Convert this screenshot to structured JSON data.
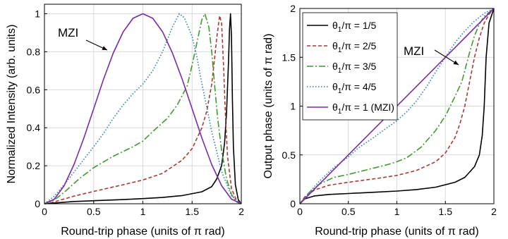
{
  "chart_data": [
    {
      "type": "line",
      "xlabel": "Round-trip phase (units of π rad)",
      "ylabel": "Normalized Intensity (arb. units)",
      "xlim": [
        0,
        2
      ],
      "ylim": [
        0,
        1.05
      ],
      "xticks": [
        "0",
        "0.5",
        "1",
        "1.5",
        "2"
      ],
      "yticks": [
        "0",
        "0.2",
        "0.4",
        "0.6",
        "0.8",
        "1"
      ],
      "grid": true,
      "annotation": "MZI",
      "series": [
        {
          "name": "θ1/π = 1/5",
          "color": "#000000",
          "dash": "solid",
          "x": [
            0,
            0.1,
            0.3,
            0.5,
            0.8,
            1.0,
            1.2,
            1.4,
            1.6,
            1.7,
            1.75,
            1.8,
            1.83,
            1.85,
            1.87,
            1.88,
            1.89,
            1.9,
            1.91,
            1.92,
            1.94,
            1.97,
            2.0
          ],
          "y": [
            0,
            0.004,
            0.012,
            0.016,
            0.022,
            0.027,
            0.033,
            0.043,
            0.063,
            0.09,
            0.13,
            0.2,
            0.32,
            0.48,
            0.75,
            0.92,
            1.0,
            0.88,
            0.55,
            0.3,
            0.1,
            0.02,
            0
          ]
        },
        {
          "name": "θ1/π = 2/5",
          "color": "#a83c32",
          "dash": "5,3",
          "x": [
            0,
            0.1,
            0.3,
            0.5,
            0.8,
            1.0,
            1.2,
            1.4,
            1.5,
            1.6,
            1.65,
            1.7,
            1.73,
            1.75,
            1.78,
            1.8,
            1.82,
            1.84,
            1.86,
            1.9,
            1.95,
            2.0
          ],
          "y": [
            0,
            0.01,
            0.04,
            0.065,
            0.1,
            0.125,
            0.16,
            0.23,
            0.29,
            0.4,
            0.49,
            0.63,
            0.77,
            0.87,
            0.99,
            0.95,
            0.72,
            0.45,
            0.25,
            0.08,
            0.02,
            0
          ]
        },
        {
          "name": "θ1/π = 3/5",
          "color": "#3f9a2e",
          "dash": "9,3,2,3",
          "x": [
            0,
            0.1,
            0.2,
            0.35,
            0.5,
            0.7,
            0.9,
            1.0,
            1.1,
            1.25,
            1.35,
            1.45,
            1.5,
            1.55,
            1.6,
            1.63,
            1.67,
            1.7,
            1.73,
            1.76,
            1.8,
            1.85,
            1.9,
            1.95,
            2.0
          ],
          "y": [
            0,
            0.02,
            0.06,
            0.13,
            0.19,
            0.25,
            0.3,
            0.33,
            0.38,
            0.45,
            0.52,
            0.62,
            0.73,
            0.85,
            0.97,
            1.0,
            0.93,
            0.8,
            0.62,
            0.45,
            0.28,
            0.13,
            0.05,
            0.01,
            0
          ]
        },
        {
          "name": "θ1/π = 4/5",
          "color": "#2a7fb0",
          "dash": "1.5,2.5",
          "x": [
            0,
            0.1,
            0.2,
            0.35,
            0.5,
            0.6,
            0.7,
            0.8,
            0.9,
            1.0,
            1.1,
            1.2,
            1.3,
            1.37,
            1.42,
            1.5,
            1.55,
            1.6,
            1.7,
            1.8,
            1.9,
            2.0
          ],
          "y": [
            0,
            0.04,
            0.1,
            0.2,
            0.3,
            0.37,
            0.45,
            0.52,
            0.58,
            0.63,
            0.7,
            0.8,
            0.93,
            1.0,
            0.98,
            0.88,
            0.77,
            0.63,
            0.38,
            0.17,
            0.04,
            0
          ]
        },
        {
          "name": "θ1/π = 1 (MZI)",
          "color": "#7b2aa8",
          "dash": "solid",
          "x": [
            0,
            0.1,
            0.2,
            0.3,
            0.4,
            0.5,
            0.6,
            0.7,
            0.8,
            0.9,
            1.0,
            1.1,
            1.2,
            1.3,
            1.4,
            1.5,
            1.6,
            1.7,
            1.8,
            1.9,
            2.0
          ],
          "y": [
            0,
            0.024,
            0.095,
            0.206,
            0.345,
            0.5,
            0.655,
            0.794,
            0.905,
            0.976,
            1.0,
            0.976,
            0.905,
            0.794,
            0.655,
            0.5,
            0.345,
            0.206,
            0.095,
            0.024,
            0
          ]
        }
      ]
    },
    {
      "type": "line",
      "xlabel": "Round-trip phase (units of π rad)",
      "ylabel": "Output phase (units of π rad)",
      "xlim": [
        0,
        2
      ],
      "ylim": [
        0,
        2
      ],
      "xticks": [
        "0",
        "0.5",
        "1",
        "1.5",
        "2"
      ],
      "yticks": [
        "0",
        "0.5",
        "1",
        "1.5",
        "2"
      ],
      "grid": true,
      "annotation": "MZI",
      "legend": {
        "position": "top-left",
        "entries": [
          "θ1/π = 1/5",
          "θ1/π = 2/5",
          "θ1/π = 3/5",
          "θ1/π = 4/5",
          "θ1/π = 1 (MZI)"
        ]
      },
      "series": [
        {
          "name": "θ1/π = 1/5",
          "color": "#000000",
          "dash": "solid",
          "x": [
            0,
            0.05,
            0.15,
            0.3,
            0.5,
            0.8,
            1.0,
            1.2,
            1.4,
            1.6,
            1.7,
            1.8,
            1.85,
            1.88,
            1.9,
            1.92,
            1.95,
            2.0
          ],
          "y": [
            0,
            0.05,
            0.08,
            0.095,
            0.105,
            0.12,
            0.13,
            0.145,
            0.17,
            0.22,
            0.27,
            0.38,
            0.5,
            0.7,
            1.0,
            1.5,
            1.85,
            2.0
          ]
        },
        {
          "name": "θ1/π = 2/5",
          "color": "#a83c32",
          "dash": "5,3",
          "x": [
            0,
            0.05,
            0.15,
            0.3,
            0.5,
            0.8,
            1.0,
            1.2,
            1.4,
            1.5,
            1.6,
            1.65,
            1.7,
            1.75,
            1.8,
            1.85,
            1.9,
            1.95,
            2.0
          ],
          "y": [
            0,
            0.07,
            0.14,
            0.19,
            0.22,
            0.26,
            0.29,
            0.34,
            0.43,
            0.52,
            0.68,
            0.82,
            1.0,
            1.25,
            1.5,
            1.7,
            1.85,
            1.94,
            2.0
          ]
        },
        {
          "name": "θ1/π = 3/5",
          "color": "#3f9a2e",
          "dash": "9,3,2,3",
          "x": [
            0,
            0.1,
            0.2,
            0.35,
            0.5,
            0.7,
            0.9,
            1.0,
            1.1,
            1.25,
            1.4,
            1.5,
            1.6,
            1.67,
            1.75,
            1.8,
            1.85,
            1.9,
            2.0
          ],
          "y": [
            0,
            0.12,
            0.2,
            0.27,
            0.3,
            0.35,
            0.4,
            0.43,
            0.47,
            0.58,
            0.75,
            0.9,
            1.1,
            1.25,
            1.55,
            1.72,
            1.84,
            1.92,
            2.0
          ]
        },
        {
          "name": "θ1/π = 4/5",
          "color": "#2a7fb0",
          "dash": "1.5,2.5",
          "x": [
            0,
            0.1,
            0.2,
            0.35,
            0.5,
            0.6,
            0.75,
            0.9,
            1.0,
            1.1,
            1.2,
            1.3,
            1.4,
            1.5,
            1.6,
            1.7,
            1.8,
            1.9,
            2.0
          ],
          "y": [
            0,
            0.12,
            0.23,
            0.37,
            0.48,
            0.57,
            0.67,
            0.78,
            0.85,
            0.94,
            1.05,
            1.19,
            1.35,
            1.5,
            1.65,
            1.77,
            1.87,
            1.95,
            2.0
          ]
        },
        {
          "name": "θ1/π = 1 (MZI)",
          "color": "#7b2aa8",
          "dash": "solid",
          "x": [
            0,
            2.0
          ],
          "y": [
            0,
            2.0
          ]
        }
      ]
    }
  ]
}
